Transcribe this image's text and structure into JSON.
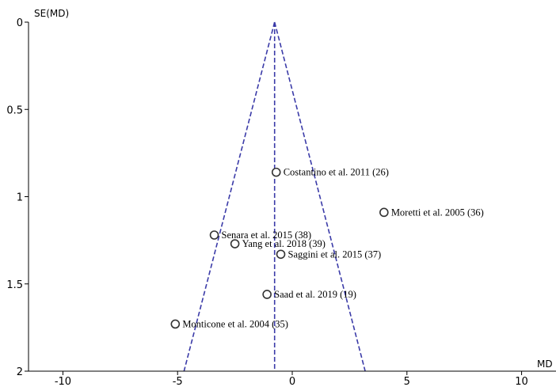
{
  "chart_data": {
    "type": "scatter",
    "subtype": "funnel-plot",
    "xlabel": "MD",
    "ylabel": "SE(MD)",
    "xlim": [
      -11.5,
      11.5
    ],
    "ylim": [
      0,
      2
    ],
    "y_inverted": true,
    "x_ticks": [
      -10,
      -5,
      0,
      5,
      10
    ],
    "x_tick_labels": [
      "-10",
      "-5",
      "0",
      "5",
      "10"
    ],
    "y_ticks": [
      0,
      0.5,
      1,
      1.5,
      2
    ],
    "y_tick_labels": [
      "0",
      "0.5",
      "1",
      "1.5",
      "2"
    ],
    "pooled_md": -0.77,
    "funnel_bottom_left": -4.72,
    "funnel_bottom_right": 3.18,
    "points": [
      {
        "label": "Costantino et al. 2011 (26)",
        "x": -0.7,
        "y": 0.86
      },
      {
        "label": "Moretti et al. 2005 (36)",
        "x": 4.0,
        "y": 1.09
      },
      {
        "label": "Senara et al. 2015 (38)",
        "x": -3.4,
        "y": 1.22
      },
      {
        "label": "Yang et al. 2018 (39)",
        "x": -2.5,
        "y": 1.27
      },
      {
        "label": "Saggini et al. 2015 (37)",
        "x": -0.5,
        "y": 1.33
      },
      {
        "label": "Saad et al. 2019 (19)",
        "x": -1.1,
        "y": 1.56
      },
      {
        "label": "Monticone et al. 2004 (35)",
        "x": -5.1,
        "y": 1.73
      }
    ],
    "line_color": "#3b3ba8",
    "marker_color": "#333333"
  }
}
